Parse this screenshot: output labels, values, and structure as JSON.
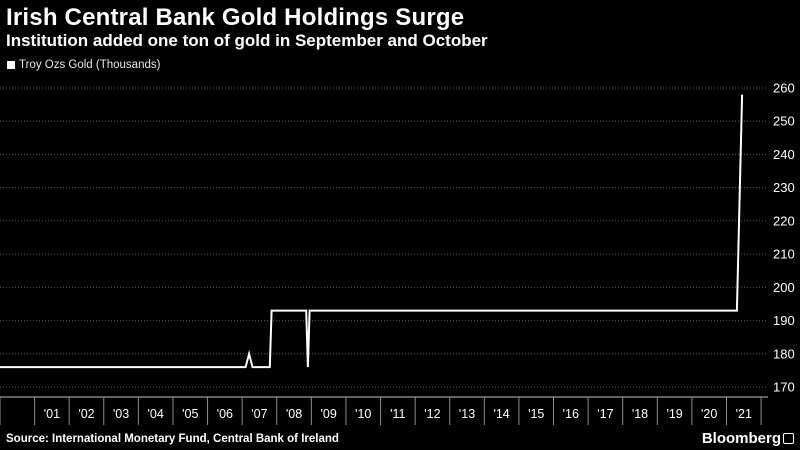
{
  "header": {
    "title": "Irish Central Bank Gold Holdings Surge",
    "subtitle": "Institution added one ton of gold in September and October"
  },
  "footer": {
    "source": "Source: International Monetary Fund, Central Bank of Ireland",
    "brand": "Bloomberg"
  },
  "chart_data": {
    "type": "line",
    "series": [
      {
        "name": "Troy Ozs Gold (Thousands)",
        "color": "#ffffff",
        "points": [
          [
            2000.0,
            176
          ],
          [
            2007.1,
            176
          ],
          [
            2007.2,
            180
          ],
          [
            2007.3,
            176
          ],
          [
            2007.8,
            176
          ],
          [
            2007.85,
            193
          ],
          [
            2008.85,
            193
          ],
          [
            2008.9,
            176
          ],
          [
            2008.95,
            193
          ],
          [
            2009.5,
            193
          ],
          [
            2021.3,
            193
          ],
          [
            2021.45,
            258
          ]
        ]
      }
    ],
    "x_range": [
      2000.0,
      2022.2
    ],
    "x_ticks": [
      "'01",
      "'02",
      "'03",
      "'04",
      "'05",
      "'06",
      "'07",
      "'08",
      "'09",
      "'10",
      "'11",
      "'12",
      "'13",
      "'14",
      "'15",
      "'16",
      "'17",
      "'18",
      "'19",
      "'20",
      "'21"
    ],
    "x_tick_values": [
      2001,
      2002,
      2003,
      2004,
      2005,
      2006,
      2007,
      2008,
      2009,
      2010,
      2011,
      2012,
      2013,
      2014,
      2015,
      2016,
      2017,
      2018,
      2019,
      2020,
      2021
    ],
    "y_range": [
      167,
      263
    ],
    "y_ticks": [
      170,
      180,
      190,
      200,
      210,
      220,
      230,
      240,
      250,
      260
    ],
    "y_axis_side": "right",
    "grid": "horizontal dashed",
    "legend_position": "top-left",
    "colors": {
      "background": "#000000",
      "grid": "#595959",
      "axis": "#bfbfbf"
    }
  }
}
